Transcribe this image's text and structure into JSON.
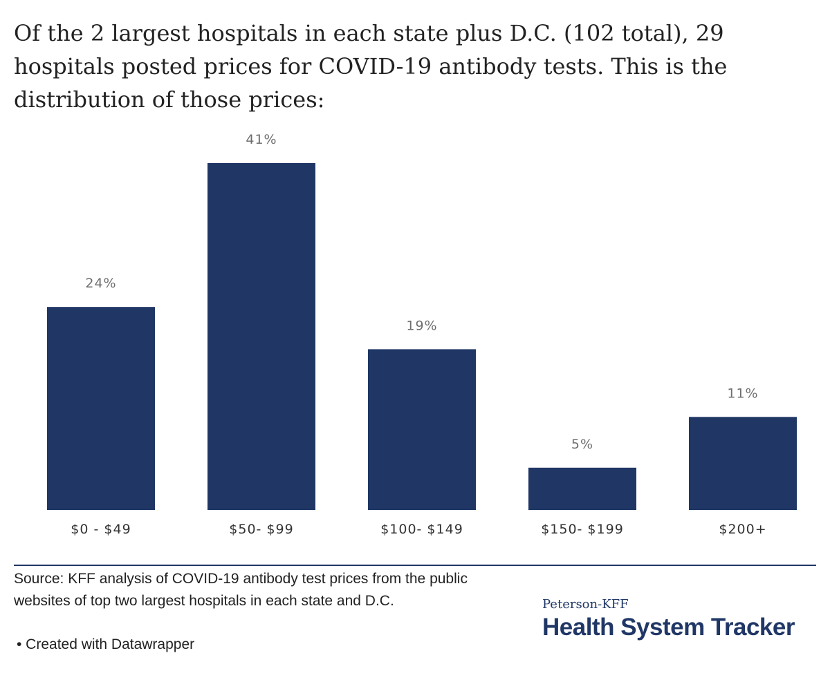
{
  "title": "Of the 2 largest hospitals in each state plus D.C. (102 total), 29 hospitals posted prices for COVID-19 antibody tests. This is the distribution of those prices:",
  "colors": {
    "bar": "#203766",
    "value_label": "#6e6e6e",
    "category_label": "#333333",
    "rule": "#203766"
  },
  "chart_data": {
    "type": "bar",
    "categories": [
      "$0 - $49",
      "$50- $99",
      "$100- $149",
      "$150- $199",
      "$200+"
    ],
    "values": [
      24,
      41,
      19,
      5,
      11
    ],
    "value_labels": [
      "24%",
      "41%",
      "19%",
      "5%",
      "11%"
    ],
    "ylim": [
      0,
      41
    ],
    "grid": false,
    "y_axis_shown": false
  },
  "footer": {
    "source": "Source: KFF analysis of COVID-19 antibody test prices from the public websites of top two largest hospitals in each state and D.C.",
    "credit": "• Created with Datawrapper"
  },
  "logo": {
    "top": "Peterson-KFF",
    "main": "Health System Tracker"
  }
}
